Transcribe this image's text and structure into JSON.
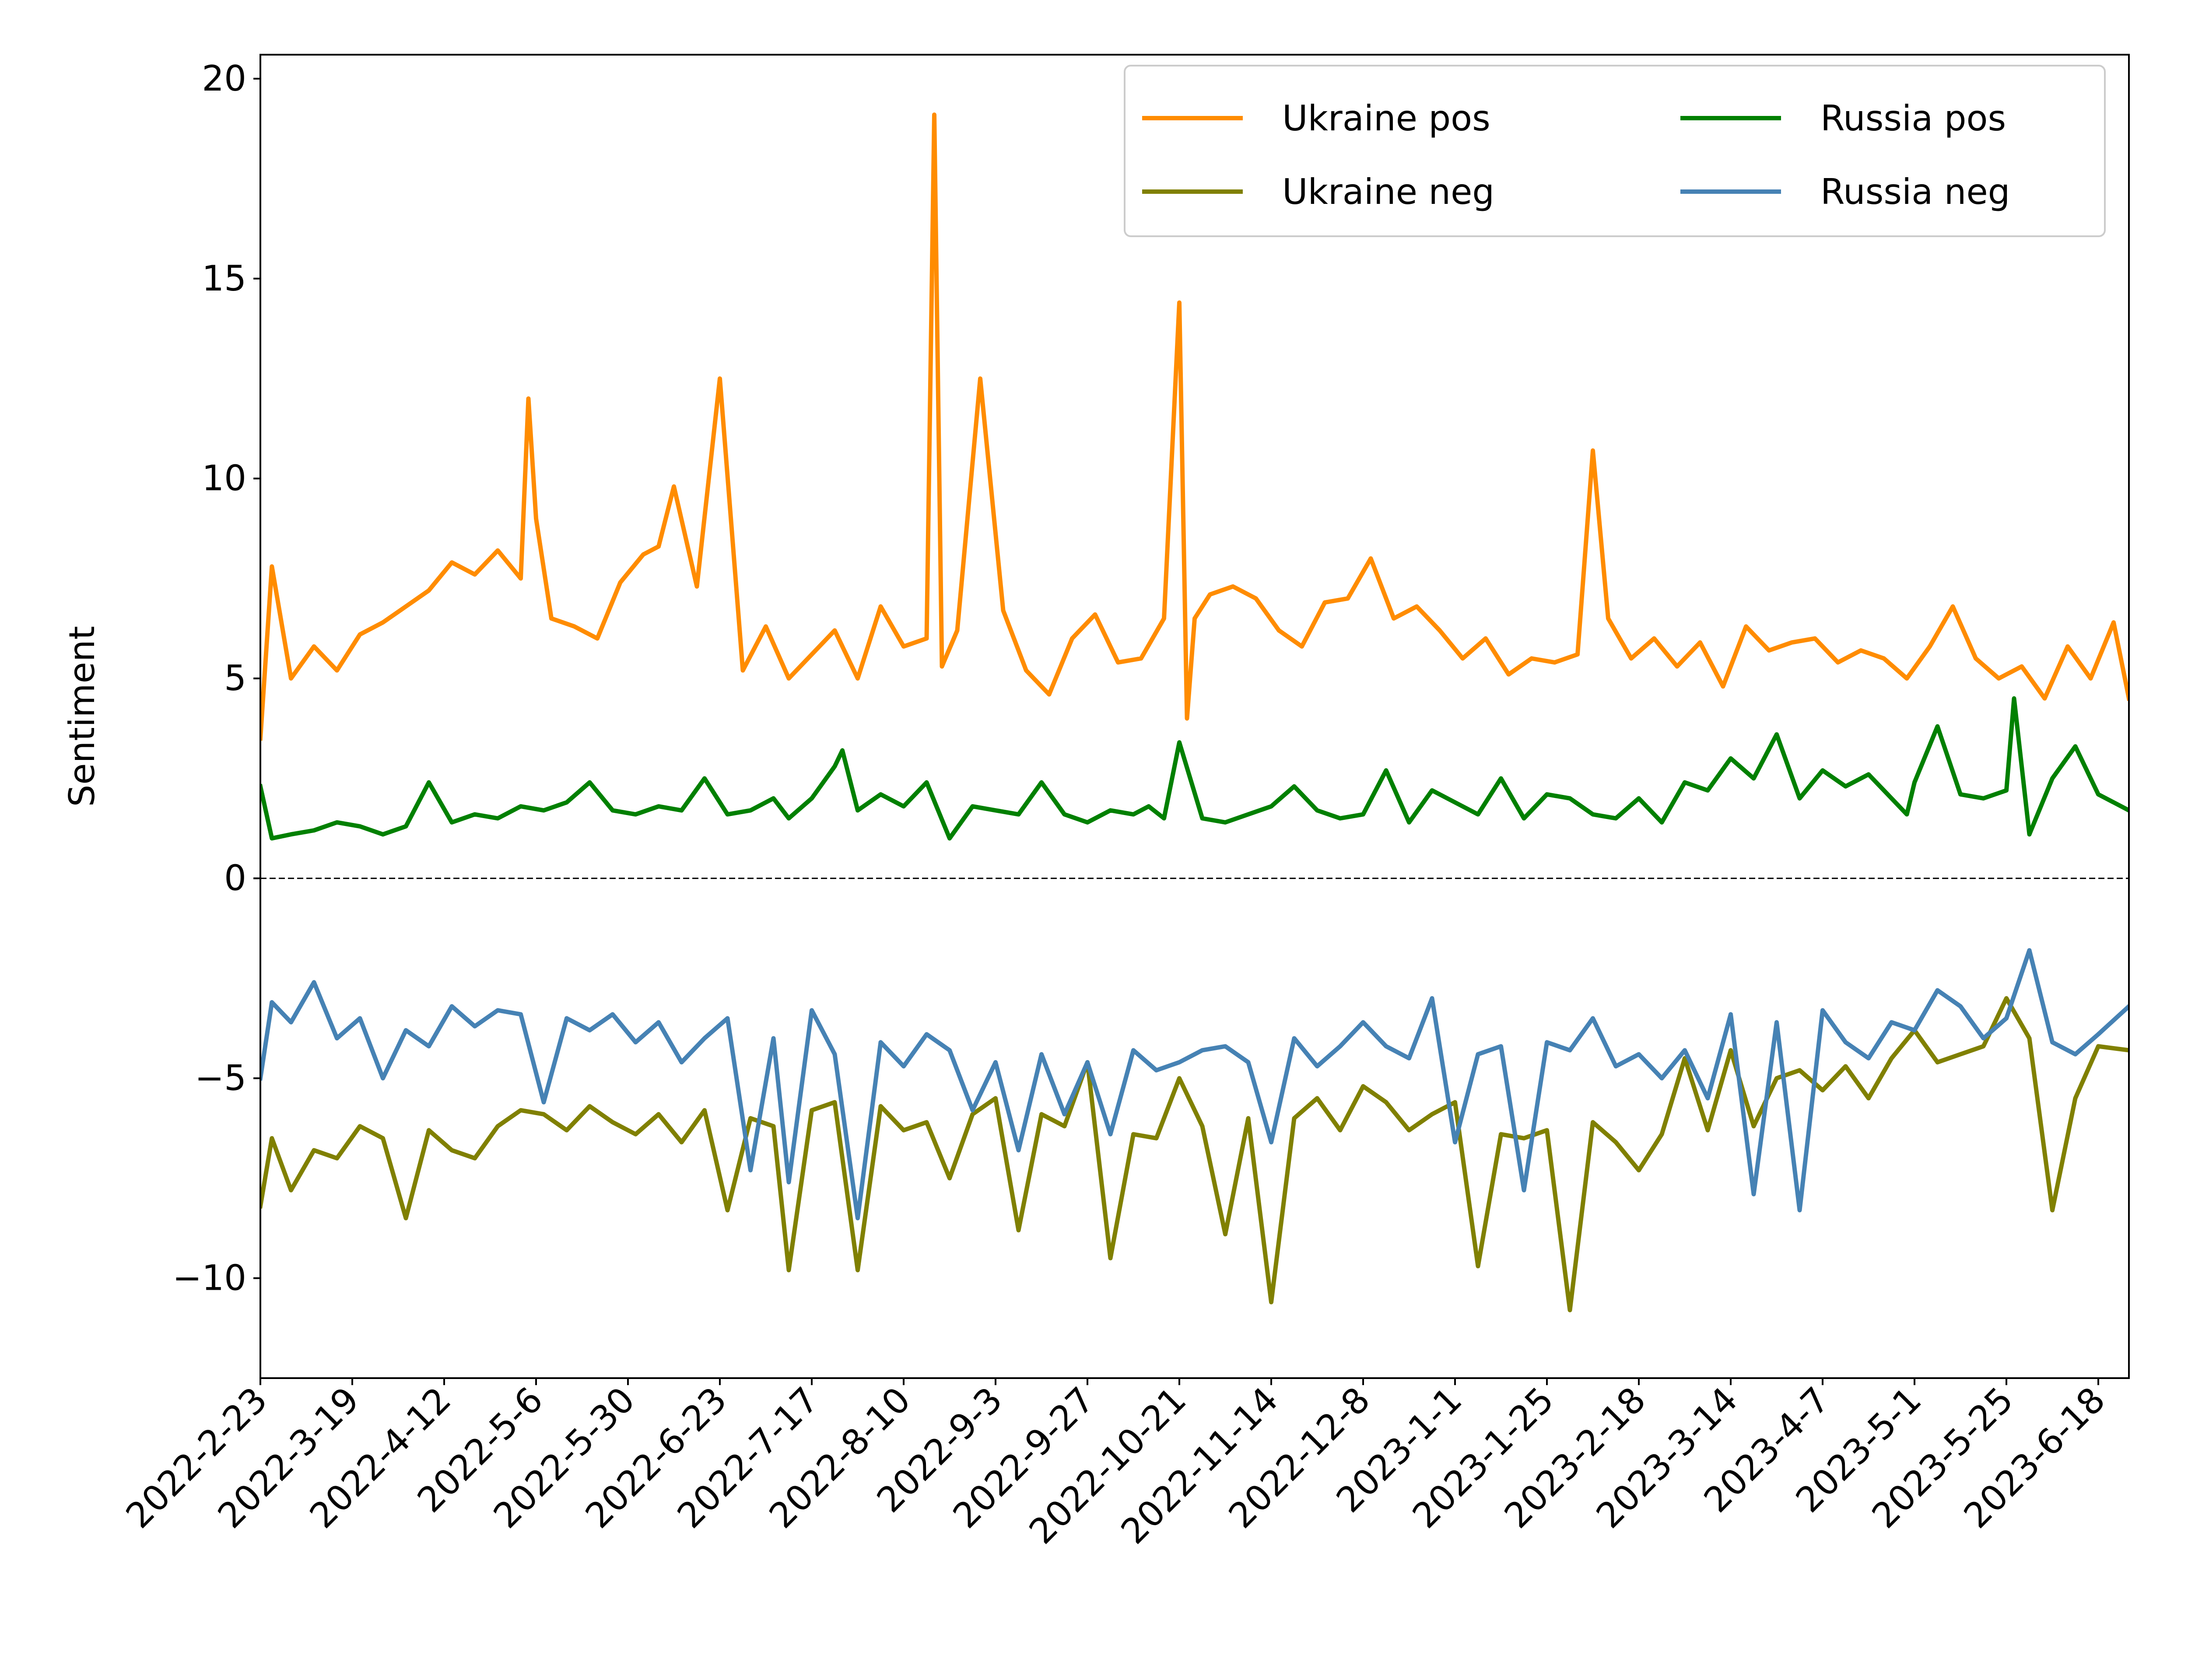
{
  "chart_data": {
    "type": "line",
    "title": "",
    "xlabel": "",
    "ylabel": "Sentiment",
    "ylim": [
      -12.5,
      20.6
    ],
    "xlim": [
      "2022-02-23",
      "2023-06-26"
    ],
    "y_ticks": [
      -10,
      -5,
      0,
      5,
      10,
      15,
      20
    ],
    "y_tick_labels": [
      "−10",
      "−5",
      "0",
      "5",
      "10",
      "15",
      "20"
    ],
    "x_ticks": [
      "2022-02-23",
      "2022-03-19",
      "2022-04-12",
      "2022-05-06",
      "2022-05-30",
      "2022-06-23",
      "2022-07-17",
      "2022-08-10",
      "2022-09-03",
      "2022-09-27",
      "2022-10-21",
      "2022-11-14",
      "2022-12-08",
      "2023-01-01",
      "2023-01-25",
      "2023-02-18",
      "2023-03-14",
      "2023-04-07",
      "2023-05-01",
      "2023-05-25",
      "2023-06-18"
    ],
    "x_tick_labels": [
      "2022-2-23",
      "2022-3-19",
      "2022-4-12",
      "2022-5-6",
      "2022-5-30",
      "2022-6-23",
      "2022-7-17",
      "2022-8-10",
      "2022-9-3",
      "2022-9-27",
      "2022-10-21",
      "2022-11-14",
      "2022-12-8",
      "2023-1-1",
      "2023-1-25",
      "2023-2-18",
      "2023-3-14",
      "2023-4-7",
      "2023-5-1",
      "2023-5-25",
      "2023-6-18"
    ],
    "reference_line": {
      "y": 0,
      "style": "dashed",
      "color": "#000000"
    },
    "grid": false,
    "legend": {
      "placement": "top-right",
      "columns": 2
    },
    "series": [
      {
        "name": "Ukraine pos",
        "color": "#ff8c00",
        "x": [
          "2022-02-23",
          "2022-02-26",
          "2022-03-03",
          "2022-03-09",
          "2022-03-15",
          "2022-03-21",
          "2022-03-27",
          "2022-04-02",
          "2022-04-08",
          "2022-04-14",
          "2022-04-20",
          "2022-04-26",
          "2022-05-02",
          "2022-05-04",
          "2022-05-06",
          "2022-05-10",
          "2022-05-16",
          "2022-05-22",
          "2022-05-28",
          "2022-06-03",
          "2022-06-07",
          "2022-06-11",
          "2022-06-17",
          "2022-06-23",
          "2022-06-29",
          "2022-07-05",
          "2022-07-11",
          "2022-07-17",
          "2022-07-23",
          "2022-07-29",
          "2022-08-04",
          "2022-08-10",
          "2022-08-16",
          "2022-08-18",
          "2022-08-20",
          "2022-08-24",
          "2022-08-30",
          "2022-09-05",
          "2022-09-11",
          "2022-09-17",
          "2022-09-23",
          "2022-09-29",
          "2022-10-05",
          "2022-10-11",
          "2022-10-17",
          "2022-10-21",
          "2022-10-23",
          "2022-10-25",
          "2022-10-29",
          "2022-11-04",
          "2022-11-10",
          "2022-11-16",
          "2022-11-22",
          "2022-11-28",
          "2022-12-04",
          "2022-12-10",
          "2022-12-16",
          "2022-12-22",
          "2022-12-28",
          "2023-01-03",
          "2023-01-09",
          "2023-01-15",
          "2023-01-21",
          "2023-01-27",
          "2023-02-02",
          "2023-02-06",
          "2023-02-10",
          "2023-02-16",
          "2023-02-22",
          "2023-02-28",
          "2023-03-06",
          "2023-03-12",
          "2023-03-18",
          "2023-03-24",
          "2023-03-30",
          "2023-04-05",
          "2023-04-11",
          "2023-04-17",
          "2023-04-23",
          "2023-04-29",
          "2023-05-05",
          "2023-05-11",
          "2023-05-17",
          "2023-05-23",
          "2023-05-29",
          "2023-06-04",
          "2023-06-10",
          "2023-06-16",
          "2023-06-22",
          "2023-06-26"
        ],
        "values": [
          3.5,
          7.8,
          5.0,
          5.8,
          5.2,
          6.1,
          6.4,
          6.8,
          7.2,
          7.9,
          7.6,
          8.2,
          7.5,
          12.0,
          9.0,
          6.5,
          6.3,
          6.0,
          7.4,
          8.1,
          8.3,
          9.8,
          7.3,
          12.5,
          5.2,
          6.3,
          5.0,
          5.6,
          6.2,
          5.0,
          6.8,
          5.8,
          6.0,
          19.1,
          5.3,
          6.2,
          12.5,
          6.7,
          5.2,
          4.6,
          6.0,
          6.6,
          5.4,
          5.5,
          6.5,
          14.4,
          4.0,
          6.5,
          7.1,
          7.3,
          7.0,
          6.2,
          5.8,
          6.9,
          7.0,
          8.0,
          6.5,
          6.8,
          6.2,
          5.5,
          6.0,
          5.1,
          5.5,
          5.4,
          5.6,
          10.7,
          6.5,
          5.5,
          6.0,
          5.3,
          5.9,
          4.8,
          6.3,
          5.7,
          5.9,
          6.0,
          5.4,
          5.7,
          5.5,
          5.0,
          5.8,
          6.8,
          5.5,
          5.0,
          5.3,
          4.5,
          5.8,
          5.0,
          6.4,
          4.5
        ]
      },
      {
        "name": "Ukraine neg",
        "color": "#808000",
        "x": [
          "2022-02-23",
          "2022-02-26",
          "2022-03-03",
          "2022-03-09",
          "2022-03-15",
          "2022-03-21",
          "2022-03-27",
          "2022-04-02",
          "2022-04-08",
          "2022-04-14",
          "2022-04-20",
          "2022-04-26",
          "2022-05-02",
          "2022-05-08",
          "2022-05-14",
          "2022-05-20",
          "2022-05-26",
          "2022-06-01",
          "2022-06-07",
          "2022-06-13",
          "2022-06-19",
          "2022-06-25",
          "2022-07-01",
          "2022-07-07",
          "2022-07-11",
          "2022-07-17",
          "2022-07-23",
          "2022-07-29",
          "2022-08-04",
          "2022-08-10",
          "2022-08-16",
          "2022-08-22",
          "2022-08-28",
          "2022-09-03",
          "2022-09-09",
          "2022-09-15",
          "2022-09-21",
          "2022-09-27",
          "2022-10-03",
          "2022-10-09",
          "2022-10-15",
          "2022-10-21",
          "2022-10-27",
          "2022-11-02",
          "2022-11-08",
          "2022-11-14",
          "2022-11-20",
          "2022-11-26",
          "2022-12-02",
          "2022-12-08",
          "2022-12-14",
          "2022-12-20",
          "2022-12-26",
          "2023-01-01",
          "2023-01-07",
          "2023-01-13",
          "2023-01-19",
          "2023-01-25",
          "2023-01-31",
          "2023-02-06",
          "2023-02-12",
          "2023-02-18",
          "2023-02-24",
          "2023-03-02",
          "2023-03-08",
          "2023-03-14",
          "2023-03-20",
          "2023-03-26",
          "2023-04-01",
          "2023-04-07",
          "2023-04-13",
          "2023-04-19",
          "2023-04-25",
          "2023-05-01",
          "2023-05-07",
          "2023-05-13",
          "2023-05-19",
          "2023-05-25",
          "2023-05-31",
          "2023-06-06",
          "2023-06-12",
          "2023-06-18",
          "2023-06-26"
        ],
        "values": [
          -8.2,
          -6.5,
          -7.8,
          -6.8,
          -7.0,
          -6.2,
          -6.5,
          -8.5,
          -6.3,
          -6.8,
          -7.0,
          -6.2,
          -5.8,
          -5.9,
          -6.3,
          -5.7,
          -6.1,
          -6.4,
          -5.9,
          -6.6,
          -5.8,
          -8.3,
          -6.0,
          -6.2,
          -9.8,
          -5.8,
          -5.6,
          -9.8,
          -5.7,
          -6.3,
          -6.1,
          -7.5,
          -5.9,
          -5.5,
          -8.8,
          -5.9,
          -6.2,
          -4.6,
          -9.5,
          -6.4,
          -6.5,
          -5.0,
          -6.2,
          -8.9,
          -6.0,
          -10.6,
          -6.0,
          -5.5,
          -6.3,
          -5.2,
          -5.6,
          -6.3,
          -5.9,
          -5.6,
          -9.7,
          -6.4,
          -6.5,
          -6.3,
          -10.8,
          -6.1,
          -6.6,
          -7.3,
          -6.4,
          -4.5,
          -6.3,
          -4.3,
          -6.2,
          -5.0,
          -4.8,
          -5.3,
          -4.7,
          -5.5,
          -4.5,
          -3.8,
          -4.6,
          -4.4,
          -4.2,
          -3.0,
          -4.0,
          -8.3,
          -5.5,
          -4.2,
          -4.3
        ]
      },
      {
        "name": "Russia pos",
        "color": "#008000",
        "x": [
          "2022-02-23",
          "2022-02-26",
          "2022-03-03",
          "2022-03-09",
          "2022-03-15",
          "2022-03-21",
          "2022-03-27",
          "2022-04-02",
          "2022-04-08",
          "2022-04-14",
          "2022-04-20",
          "2022-04-26",
          "2022-05-02",
          "2022-05-08",
          "2022-05-14",
          "2022-05-20",
          "2022-05-26",
          "2022-06-01",
          "2022-06-07",
          "2022-06-13",
          "2022-06-19",
          "2022-06-25",
          "2022-07-01",
          "2022-07-07",
          "2022-07-11",
          "2022-07-17",
          "2022-07-23",
          "2022-07-25",
          "2022-07-29",
          "2022-08-04",
          "2022-08-10",
          "2022-08-16",
          "2022-08-22",
          "2022-08-28",
          "2022-09-03",
          "2022-09-09",
          "2022-09-15",
          "2022-09-21",
          "2022-09-27",
          "2022-10-03",
          "2022-10-09",
          "2022-10-13",
          "2022-10-17",
          "2022-10-21",
          "2022-10-27",
          "2022-11-02",
          "2022-11-08",
          "2022-11-14",
          "2022-11-20",
          "2022-11-26",
          "2022-12-02",
          "2022-12-08",
          "2022-12-14",
          "2022-12-20",
          "2022-12-26",
          "2023-01-01",
          "2023-01-07",
          "2023-01-13",
          "2023-01-19",
          "2023-01-25",
          "2023-01-31",
          "2023-02-06",
          "2023-02-12",
          "2023-02-18",
          "2023-02-24",
          "2023-03-02",
          "2023-03-08",
          "2023-03-14",
          "2023-03-20",
          "2023-03-26",
          "2023-04-01",
          "2023-04-07",
          "2023-04-13",
          "2023-04-19",
          "2023-04-25",
          "2023-04-29",
          "2023-05-01",
          "2023-05-07",
          "2023-05-13",
          "2023-05-19",
          "2023-05-25",
          "2023-05-27",
          "2023-05-31",
          "2023-06-06",
          "2023-06-12",
          "2023-06-18",
          "2023-06-26"
        ],
        "values": [
          2.3,
          1.0,
          1.1,
          1.2,
          1.4,
          1.3,
          1.1,
          1.3,
          2.4,
          1.4,
          1.6,
          1.5,
          1.8,
          1.7,
          1.9,
          2.4,
          1.7,
          1.6,
          1.8,
          1.7,
          2.5,
          1.6,
          1.7,
          2.0,
          1.5,
          2.0,
          2.8,
          3.2,
          1.7,
          2.1,
          1.8,
          2.4,
          1.0,
          1.8,
          1.7,
          1.6,
          2.4,
          1.6,
          1.4,
          1.7,
          1.6,
          1.8,
          1.5,
          3.4,
          1.5,
          1.4,
          1.6,
          1.8,
          2.3,
          1.7,
          1.5,
          1.6,
          2.7,
          1.4,
          2.2,
          1.9,
          1.6,
          2.5,
          1.5,
          2.1,
          2.0,
          1.6,
          1.5,
          2.0,
          1.4,
          2.4,
          2.2,
          3.0,
          2.5,
          3.6,
          2.0,
          2.7,
          2.3,
          2.6,
          2.0,
          1.6,
          2.4,
          3.8,
          2.1,
          2.0,
          2.2,
          4.5,
          1.1,
          2.5,
          3.3,
          2.1,
          1.7
        ]
      },
      {
        "name": "Russia neg",
        "color": "#4682b4",
        "x": [
          "2022-02-23",
          "2022-02-26",
          "2022-03-03",
          "2022-03-09",
          "2022-03-15",
          "2022-03-21",
          "2022-03-27",
          "2022-04-02",
          "2022-04-08",
          "2022-04-14",
          "2022-04-20",
          "2022-04-26",
          "2022-05-02",
          "2022-05-08",
          "2022-05-14",
          "2022-05-20",
          "2022-05-26",
          "2022-06-01",
          "2022-06-07",
          "2022-06-13",
          "2022-06-19",
          "2022-06-25",
          "2022-07-01",
          "2022-07-07",
          "2022-07-11",
          "2022-07-17",
          "2022-07-23",
          "2022-07-29",
          "2022-08-04",
          "2022-08-10",
          "2022-08-16",
          "2022-08-22",
          "2022-08-28",
          "2022-09-03",
          "2022-09-09",
          "2022-09-15",
          "2022-09-21",
          "2022-09-27",
          "2022-10-03",
          "2022-10-09",
          "2022-10-15",
          "2022-10-21",
          "2022-10-27",
          "2022-11-02",
          "2022-11-08",
          "2022-11-14",
          "2022-11-20",
          "2022-11-26",
          "2022-12-02",
          "2022-12-08",
          "2022-12-14",
          "2022-12-20",
          "2022-12-26",
          "2023-01-01",
          "2023-01-07",
          "2023-01-13",
          "2023-01-19",
          "2023-01-25",
          "2023-01-31",
          "2023-02-06",
          "2023-02-12",
          "2023-02-18",
          "2023-02-24",
          "2023-03-02",
          "2023-03-08",
          "2023-03-14",
          "2023-03-20",
          "2023-03-26",
          "2023-04-01",
          "2023-04-07",
          "2023-04-13",
          "2023-04-19",
          "2023-04-25",
          "2023-05-01",
          "2023-05-07",
          "2023-05-13",
          "2023-05-19",
          "2023-05-25",
          "2023-05-31",
          "2023-06-06",
          "2023-06-12",
          "2023-06-18",
          "2023-06-26"
        ],
        "values": [
          -5.0,
          -3.1,
          -3.6,
          -2.6,
          -4.0,
          -3.5,
          -5.0,
          -3.8,
          -4.2,
          -3.2,
          -3.7,
          -3.3,
          -3.4,
          -5.6,
          -3.5,
          -3.8,
          -3.4,
          -4.1,
          -3.6,
          -4.6,
          -4.0,
          -3.5,
          -7.3,
          -4.0,
          -7.6,
          -3.3,
          -4.4,
          -8.5,
          -4.1,
          -4.7,
          -3.9,
          -4.3,
          -5.8,
          -4.6,
          -6.8,
          -4.4,
          -5.9,
          -4.6,
          -6.4,
          -4.3,
          -4.8,
          -4.6,
          -4.3,
          -4.2,
          -4.6,
          -6.6,
          -4.0,
          -4.7,
          -4.2,
          -3.6,
          -4.2,
          -4.5,
          -3.0,
          -6.6,
          -4.4,
          -4.2,
          -7.8,
          -4.1,
          -4.3,
          -3.5,
          -4.7,
          -4.4,
          -5.0,
          -4.3,
          -5.5,
          -3.4,
          -7.9,
          -3.6,
          -8.3,
          -3.3,
          -4.1,
          -4.5,
          -3.6,
          -3.8,
          -2.8,
          -3.2,
          -4.0,
          -3.5,
          -1.8,
          -4.1,
          -4.4,
          -3.9,
          -3.2
        ]
      }
    ]
  }
}
